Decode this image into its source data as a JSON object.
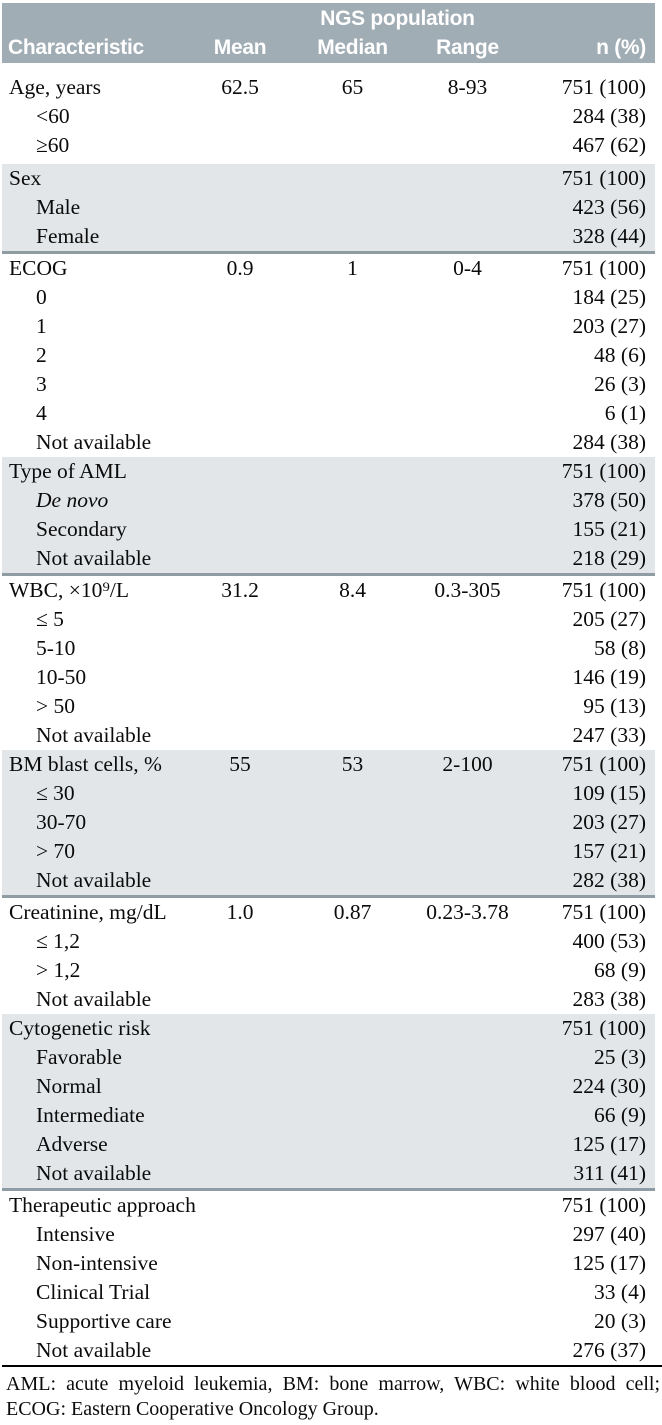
{
  "colors": {
    "header_bg": "#A1ADB5",
    "band_bg": "#E2E6E8",
    "divider": "#8F9CA4",
    "rule": "#000000",
    "header_text": "#FFFFFF"
  },
  "table": {
    "span_header": "NGS population",
    "columns": [
      "Characteristic",
      "Mean",
      "Median",
      "Range",
      "n (%)"
    ],
    "sections": [
      {
        "shaded": false,
        "rows": [
          {
            "label": "Age, years",
            "mean": "62.5",
            "median": "65",
            "range": "8-93",
            "n": "751 (100)"
          },
          {
            "label": "<60",
            "indent": true,
            "n": "284 (38)"
          },
          {
            "label": "≥60",
            "indent": true,
            "n": "467 (62)"
          }
        ]
      },
      {
        "shaded": true,
        "rows": [
          {
            "label": "Sex",
            "n": "751 (100)"
          },
          {
            "label": "Male",
            "indent": true,
            "n": "423 (56)"
          },
          {
            "label": "Female",
            "indent": true,
            "n": "328 (44)"
          }
        ]
      },
      {
        "shaded": false,
        "rows": [
          {
            "label": "ECOG",
            "mean": "0.9",
            "median": "1",
            "range": "0-4",
            "n": "751 (100)"
          },
          {
            "label": "0",
            "indent": true,
            "n": "184 (25)"
          },
          {
            "label": "1",
            "indent": true,
            "n": "203 (27)"
          },
          {
            "label": "2",
            "indent": true,
            "n": "48 (6)"
          },
          {
            "label": "3",
            "indent": true,
            "n": "26 (3)"
          },
          {
            "label": "4",
            "indent": true,
            "n": "6 (1)"
          },
          {
            "label": "Not available",
            "indent": true,
            "n": "284 (38)"
          }
        ]
      },
      {
        "shaded": true,
        "rows": [
          {
            "label": "Type of AML",
            "n": "751 (100)"
          },
          {
            "label": "De novo",
            "indent": true,
            "italic": true,
            "n": "378 (50)"
          },
          {
            "label": "Secondary",
            "indent": true,
            "n": "155 (21)"
          },
          {
            "label": "Not available",
            "indent": true,
            "n": "218 (29)"
          }
        ]
      },
      {
        "shaded": false,
        "rows": [
          {
            "label": "WBC, ×10⁹/L",
            "mean": "31.2",
            "median": "8.4",
            "range": "0.3-305",
            "n": "751 (100)"
          },
          {
            "label": "≤ 5",
            "indent": true,
            "n": "205 (27)"
          },
          {
            "label": "5-10",
            "indent": true,
            "n": "58 (8)"
          },
          {
            "label": "10-50",
            "indent": true,
            "n": "146 (19)"
          },
          {
            "label": "> 50",
            "indent": true,
            "n": "95 (13)"
          },
          {
            "label": "Not available",
            "indent": true,
            "n": "247 (33)"
          }
        ]
      },
      {
        "shaded": true,
        "rows": [
          {
            "label": "BM blast cells, %",
            "mean": "55",
            "median": "53",
            "range": "2-100",
            "n": "751 (100)"
          },
          {
            "label": "≤ 30",
            "indent": true,
            "n": "109 (15)"
          },
          {
            "label": "30-70",
            "indent": true,
            "n": "203 (27)"
          },
          {
            "label": "> 70",
            "indent": true,
            "n": "157 (21)"
          },
          {
            "label": "Not available",
            "indent": true,
            "n": "282 (38)"
          }
        ]
      },
      {
        "shaded": false,
        "rows": [
          {
            "label": "Creatinine, mg/dL",
            "mean": "1.0",
            "median": "0.87",
            "range": "0.23-3.78",
            "n": "751 (100)"
          },
          {
            "label": "≤ 1,2",
            "indent": true,
            "n": "400 (53)"
          },
          {
            "label": "> 1,2",
            "indent": true,
            "n": "68 (9)"
          },
          {
            "label": "Not available",
            "indent": true,
            "n": "283 (38)"
          }
        ]
      },
      {
        "shaded": true,
        "rows": [
          {
            "label": "Cytogenetic risk",
            "n": "751 (100)"
          },
          {
            "label": "Favorable",
            "indent": true,
            "n": "25 (3)"
          },
          {
            "label": "Normal",
            "indent": true,
            "n": "224 (30)"
          },
          {
            "label": "Intermediate",
            "indent": true,
            "n": "66 (9)"
          },
          {
            "label": "Adverse",
            "indent": true,
            "n": "125 (17)"
          },
          {
            "label": "Not available",
            "indent": true,
            "n": "311 (41)"
          }
        ]
      },
      {
        "shaded": false,
        "rows": [
          {
            "label": "Therapeutic approach",
            "n": "751 (100)"
          },
          {
            "label": "Intensive",
            "indent": true,
            "n": "297 (40)"
          },
          {
            "label": "Non-intensive",
            "indent": true,
            "n": "125 (17)"
          },
          {
            "label": "Clinical Trial",
            "indent": true,
            "n": "33 (4)"
          },
          {
            "label": "Supportive care",
            "indent": true,
            "n": "20 (3)"
          },
          {
            "label": "Not available",
            "indent": true,
            "n": "276 (37)"
          }
        ]
      }
    ],
    "footnote": "AML: acute myeloid leukemia, BM: bone marrow, WBC: white blood cell; ECOG: Eastern Cooperative Oncology Group."
  }
}
